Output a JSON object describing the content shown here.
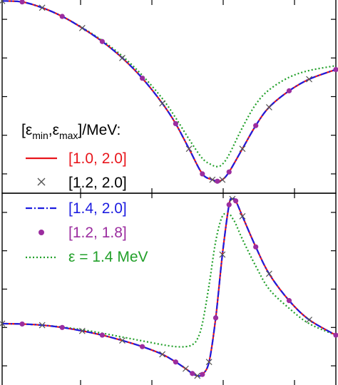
{
  "chart_data": [
    {
      "type": "line",
      "panel": "top",
      "xlim": [
        0,
        1
      ],
      "ylim": [
        0,
        1
      ],
      "grid": false,
      "ticks_labeled": false,
      "series": [
        {
          "name": "[1.0, 2.0]",
          "color": "#e8161c",
          "style": "solid",
          "x": [
            0,
            0.06,
            0.12,
            0.18,
            0.24,
            0.3,
            0.36,
            0.42,
            0.48,
            0.52,
            0.56,
            0.6,
            0.63,
            0.645,
            0.66,
            0.68,
            0.72,
            0.76,
            0.8,
            0.86,
            0.92,
            1.0
          ],
          "y": [
            0.995,
            0.99,
            0.96,
            0.915,
            0.855,
            0.785,
            0.7,
            0.595,
            0.465,
            0.36,
            0.23,
            0.1,
            0.07,
            0.062,
            0.07,
            0.11,
            0.23,
            0.35,
            0.445,
            0.53,
            0.59,
            0.64
          ]
        },
        {
          "name": "[1.2, 2.0]",
          "color": "#555555",
          "style": "cross-markers",
          "x": [
            0,
            0.06,
            0.12,
            0.18,
            0.24,
            0.3,
            0.36,
            0.42,
            0.48,
            0.52,
            0.56,
            0.6,
            0.63,
            0.645,
            0.66,
            0.68,
            0.72,
            0.76,
            0.8,
            0.86,
            0.92,
            1.0
          ],
          "y": [
            0.995,
            0.99,
            0.96,
            0.915,
            0.855,
            0.785,
            0.7,
            0.595,
            0.465,
            0.36,
            0.23,
            0.1,
            0.07,
            0.062,
            0.07,
            0.11,
            0.23,
            0.35,
            0.445,
            0.53,
            0.59,
            0.64
          ]
        },
        {
          "name": "[1.4, 2.0]",
          "color": "#1d1de0",
          "style": "dash-dot",
          "x": [
            0,
            0.06,
            0.12,
            0.18,
            0.24,
            0.3,
            0.36,
            0.42,
            0.48,
            0.52,
            0.56,
            0.6,
            0.63,
            0.645,
            0.66,
            0.68,
            0.72,
            0.76,
            0.8,
            0.86,
            0.92,
            1.0
          ],
          "y": [
            0.995,
            0.99,
            0.96,
            0.915,
            0.855,
            0.785,
            0.7,
            0.595,
            0.465,
            0.36,
            0.23,
            0.1,
            0.07,
            0.062,
            0.07,
            0.11,
            0.23,
            0.35,
            0.445,
            0.53,
            0.59,
            0.64
          ]
        },
        {
          "name": "[1.2, 1.8]",
          "color": "#9b2d9f",
          "style": "dot-markers",
          "x": [
            0,
            0.06,
            0.12,
            0.18,
            0.24,
            0.3,
            0.36,
            0.42,
            0.48,
            0.52,
            0.56,
            0.6,
            0.63,
            0.645,
            0.66,
            0.68,
            0.72,
            0.76,
            0.8,
            0.86,
            0.92,
            1.0
          ],
          "y": [
            0.995,
            0.99,
            0.96,
            0.915,
            0.855,
            0.785,
            0.7,
            0.595,
            0.465,
            0.36,
            0.23,
            0.1,
            0.07,
            0.062,
            0.07,
            0.11,
            0.23,
            0.35,
            0.445,
            0.53,
            0.59,
            0.64
          ]
        },
        {
          "name": "ε = 1.4 MeV",
          "color": "#22a02a",
          "style": "dotted",
          "x": [
            0,
            0.06,
            0.12,
            0.18,
            0.24,
            0.3,
            0.36,
            0.42,
            0.48,
            0.52,
            0.56,
            0.6,
            0.63,
            0.645,
            0.66,
            0.68,
            0.72,
            0.76,
            0.8,
            0.86,
            0.92,
            1.0
          ],
          "y": [
            0.995,
            0.99,
            0.96,
            0.915,
            0.857,
            0.79,
            0.71,
            0.61,
            0.49,
            0.39,
            0.28,
            0.18,
            0.145,
            0.138,
            0.15,
            0.2,
            0.34,
            0.46,
            0.535,
            0.6,
            0.635,
            0.66
          ]
        }
      ]
    },
    {
      "type": "line",
      "panel": "bottom",
      "xlim": [
        0,
        1
      ],
      "ylim": [
        0,
        1
      ],
      "grid": false,
      "ticks_labeled": false,
      "series": [
        {
          "name": "[1.0, 2.0]",
          "color": "#e8161c",
          "style": "solid",
          "x": [
            0,
            0.06,
            0.12,
            0.18,
            0.24,
            0.3,
            0.36,
            0.42,
            0.48,
            0.52,
            0.55,
            0.57,
            0.585,
            0.6,
            0.62,
            0.64,
            0.66,
            0.68,
            0.69,
            0.7,
            0.72,
            0.76,
            0.8,
            0.86,
            0.92,
            1.0
          ],
          "y": [
            0.32,
            0.318,
            0.312,
            0.3,
            0.282,
            0.26,
            0.232,
            0.2,
            0.16,
            0.12,
            0.085,
            0.06,
            0.048,
            0.055,
            0.12,
            0.35,
            0.68,
            0.94,
            0.97,
            0.96,
            0.88,
            0.72,
            0.58,
            0.44,
            0.34,
            0.26
          ]
        },
        {
          "name": "[1.2, 2.0]",
          "color": "#555555",
          "style": "cross-markers",
          "x": [
            0,
            0.06,
            0.12,
            0.18,
            0.24,
            0.3,
            0.36,
            0.42,
            0.48,
            0.52,
            0.55,
            0.57,
            0.585,
            0.6,
            0.62,
            0.64,
            0.66,
            0.68,
            0.69,
            0.7,
            0.72,
            0.76,
            0.8,
            0.86,
            0.92,
            1.0
          ],
          "y": [
            0.32,
            0.318,
            0.312,
            0.3,
            0.282,
            0.26,
            0.232,
            0.2,
            0.16,
            0.12,
            0.085,
            0.06,
            0.048,
            0.055,
            0.12,
            0.35,
            0.68,
            0.94,
            0.97,
            0.96,
            0.88,
            0.72,
            0.58,
            0.44,
            0.34,
            0.26
          ]
        },
        {
          "name": "[1.4, 2.0]",
          "color": "#1d1de0",
          "style": "dash-dot",
          "x": [
            0,
            0.06,
            0.12,
            0.18,
            0.24,
            0.3,
            0.36,
            0.42,
            0.48,
            0.52,
            0.55,
            0.57,
            0.585,
            0.6,
            0.62,
            0.64,
            0.66,
            0.68,
            0.69,
            0.7,
            0.72,
            0.76,
            0.8,
            0.86,
            0.92,
            1.0
          ],
          "y": [
            0.32,
            0.318,
            0.312,
            0.3,
            0.282,
            0.26,
            0.232,
            0.2,
            0.16,
            0.12,
            0.085,
            0.06,
            0.048,
            0.055,
            0.12,
            0.35,
            0.68,
            0.94,
            0.97,
            0.96,
            0.88,
            0.72,
            0.58,
            0.44,
            0.34,
            0.26
          ]
        },
        {
          "name": "[1.2, 1.8]",
          "color": "#9b2d9f",
          "style": "dot-markers",
          "x": [
            0,
            0.06,
            0.12,
            0.18,
            0.24,
            0.3,
            0.36,
            0.42,
            0.48,
            0.52,
            0.55,
            0.57,
            0.585,
            0.6,
            0.62,
            0.64,
            0.66,
            0.68,
            0.69,
            0.7,
            0.72,
            0.76,
            0.8,
            0.86,
            0.92,
            1.0
          ],
          "y": [
            0.32,
            0.318,
            0.312,
            0.3,
            0.282,
            0.26,
            0.232,
            0.2,
            0.16,
            0.12,
            0.085,
            0.06,
            0.048,
            0.055,
            0.12,
            0.35,
            0.68,
            0.94,
            0.97,
            0.96,
            0.88,
            0.72,
            0.58,
            0.44,
            0.34,
            0.26
          ]
        },
        {
          "name": "ε = 1.4 MeV",
          "color": "#22a02a",
          "style": "dotted",
          "x": [
            0,
            0.06,
            0.12,
            0.18,
            0.24,
            0.3,
            0.36,
            0.42,
            0.48,
            0.52,
            0.55,
            0.57,
            0.585,
            0.6,
            0.62,
            0.64,
            0.66,
            0.68,
            0.69,
            0.7,
            0.72,
            0.76,
            0.8,
            0.86,
            0.92,
            1.0
          ],
          "y": [
            0.32,
            0.318,
            0.312,
            0.302,
            0.288,
            0.27,
            0.25,
            0.23,
            0.21,
            0.2,
            0.2,
            0.21,
            0.24,
            0.32,
            0.52,
            0.75,
            0.88,
            0.89,
            0.87,
            0.84,
            0.76,
            0.62,
            0.5,
            0.4,
            0.32,
            0.26
          ]
        }
      ]
    }
  ],
  "legend": {
    "header_prefix": "[ε",
    "header_min": "min",
    "header_sep": ",ε",
    "header_max": "max",
    "header_suffix": "]/MeV:"
  }
}
